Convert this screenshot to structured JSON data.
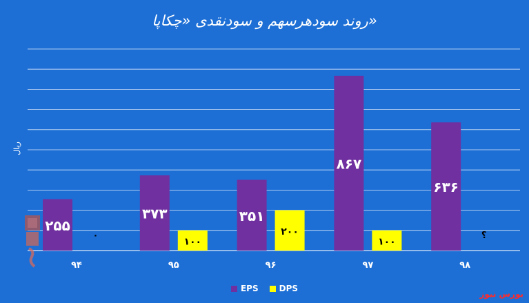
{
  "chart_data": {
    "type": "bar",
    "title": "روند سودهرسهم و سودنقدی «چکاپا»",
    "ylabel": "ریال",
    "categories": [
      "۹۴",
      "۹۵",
      "۹۶",
      "۹۷",
      "۹۸"
    ],
    "ylim": [
      0,
      1000
    ],
    "grid": true,
    "legend": "bottom",
    "series": [
      {
        "name": "EPS",
        "color": "#7030a0",
        "values": [
          255,
          373,
          351,
          867,
          636
        ],
        "labels": [
          "۲۵۵",
          "۳۷۳",
          "۳۵۱",
          "۸۶۷",
          "۶۳۶"
        ]
      },
      {
        "name": "DPS",
        "color": "#ffff00",
        "values": [
          0,
          100,
          200,
          100,
          null
        ],
        "labels": [
          "۰",
          "۱۰۰",
          "۲۰۰",
          "۱۰۰",
          "؟"
        ]
      }
    ]
  },
  "brand": "بورس نیوز",
  "colors": {
    "background": "#1d6fd6",
    "gridline": "#ffffff",
    "text": "#ffffff"
  }
}
